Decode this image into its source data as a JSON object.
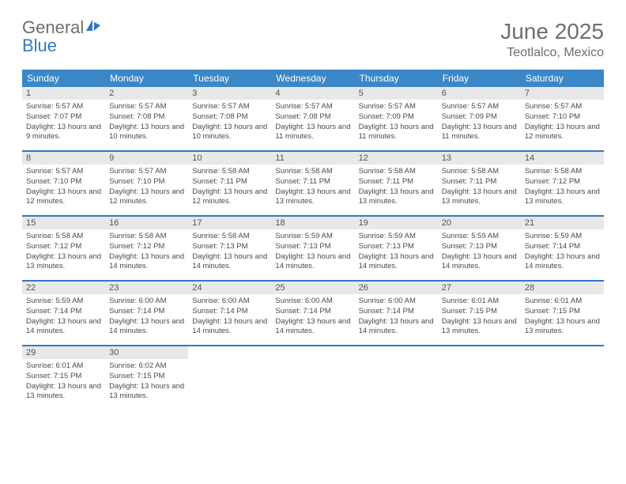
{
  "logo": {
    "word1": "General",
    "word2": "Blue"
  },
  "title": "June 2025",
  "subtitle": "Teotlalco, Mexico",
  "colors": {
    "header_bg": "#3b87c8",
    "header_text": "#ffffff",
    "daynum_bg": "#e8e8e8",
    "daynum_text": "#555555",
    "body_text": "#4a4a4a",
    "rule": "#2f7ac0",
    "logo_gray": "#6e6e6e",
    "logo_blue": "#2f7ac0"
  },
  "weekdays": [
    "Sunday",
    "Monday",
    "Tuesday",
    "Wednesday",
    "Thursday",
    "Friday",
    "Saturday"
  ],
  "days": [
    {
      "n": 1,
      "sr": "5:57 AM",
      "ss": "7:07 PM",
      "dl": "13 hours and 9 minutes."
    },
    {
      "n": 2,
      "sr": "5:57 AM",
      "ss": "7:08 PM",
      "dl": "13 hours and 10 minutes."
    },
    {
      "n": 3,
      "sr": "5:57 AM",
      "ss": "7:08 PM",
      "dl": "13 hours and 10 minutes."
    },
    {
      "n": 4,
      "sr": "5:57 AM",
      "ss": "7:08 PM",
      "dl": "13 hours and 11 minutes."
    },
    {
      "n": 5,
      "sr": "5:57 AM",
      "ss": "7:09 PM",
      "dl": "13 hours and 11 minutes."
    },
    {
      "n": 6,
      "sr": "5:57 AM",
      "ss": "7:09 PM",
      "dl": "13 hours and 11 minutes."
    },
    {
      "n": 7,
      "sr": "5:57 AM",
      "ss": "7:10 PM",
      "dl": "13 hours and 12 minutes."
    },
    {
      "n": 8,
      "sr": "5:57 AM",
      "ss": "7:10 PM",
      "dl": "13 hours and 12 minutes."
    },
    {
      "n": 9,
      "sr": "5:57 AM",
      "ss": "7:10 PM",
      "dl": "13 hours and 12 minutes."
    },
    {
      "n": 10,
      "sr": "5:58 AM",
      "ss": "7:11 PM",
      "dl": "13 hours and 12 minutes."
    },
    {
      "n": 11,
      "sr": "5:58 AM",
      "ss": "7:11 PM",
      "dl": "13 hours and 13 minutes."
    },
    {
      "n": 12,
      "sr": "5:58 AM",
      "ss": "7:11 PM",
      "dl": "13 hours and 13 minutes."
    },
    {
      "n": 13,
      "sr": "5:58 AM",
      "ss": "7:11 PM",
      "dl": "13 hours and 13 minutes."
    },
    {
      "n": 14,
      "sr": "5:58 AM",
      "ss": "7:12 PM",
      "dl": "13 hours and 13 minutes."
    },
    {
      "n": 15,
      "sr": "5:58 AM",
      "ss": "7:12 PM",
      "dl": "13 hours and 13 minutes."
    },
    {
      "n": 16,
      "sr": "5:58 AM",
      "ss": "7:12 PM",
      "dl": "13 hours and 14 minutes."
    },
    {
      "n": 17,
      "sr": "5:58 AM",
      "ss": "7:13 PM",
      "dl": "13 hours and 14 minutes."
    },
    {
      "n": 18,
      "sr": "5:59 AM",
      "ss": "7:13 PM",
      "dl": "13 hours and 14 minutes."
    },
    {
      "n": 19,
      "sr": "5:59 AM",
      "ss": "7:13 PM",
      "dl": "13 hours and 14 minutes."
    },
    {
      "n": 20,
      "sr": "5:59 AM",
      "ss": "7:13 PM",
      "dl": "13 hours and 14 minutes."
    },
    {
      "n": 21,
      "sr": "5:59 AM",
      "ss": "7:14 PM",
      "dl": "13 hours and 14 minutes."
    },
    {
      "n": 22,
      "sr": "5:59 AM",
      "ss": "7:14 PM",
      "dl": "13 hours and 14 minutes."
    },
    {
      "n": 23,
      "sr": "6:00 AM",
      "ss": "7:14 PM",
      "dl": "13 hours and 14 minutes."
    },
    {
      "n": 24,
      "sr": "6:00 AM",
      "ss": "7:14 PM",
      "dl": "13 hours and 14 minutes."
    },
    {
      "n": 25,
      "sr": "6:00 AM",
      "ss": "7:14 PM",
      "dl": "13 hours and 14 minutes."
    },
    {
      "n": 26,
      "sr": "6:00 AM",
      "ss": "7:14 PM",
      "dl": "13 hours and 14 minutes."
    },
    {
      "n": 27,
      "sr": "6:01 AM",
      "ss": "7:15 PM",
      "dl": "13 hours and 13 minutes."
    },
    {
      "n": 28,
      "sr": "6:01 AM",
      "ss": "7:15 PM",
      "dl": "13 hours and 13 minutes."
    },
    {
      "n": 29,
      "sr": "6:01 AM",
      "ss": "7:15 PM",
      "dl": "13 hours and 13 minutes."
    },
    {
      "n": 30,
      "sr": "6:02 AM",
      "ss": "7:15 PM",
      "dl": "13 hours and 13 minutes."
    }
  ],
  "labels": {
    "sunrise": "Sunrise:",
    "sunset": "Sunset:",
    "daylight": "Daylight:"
  },
  "layout": {
    "start_weekday": 0,
    "cols": 7
  }
}
